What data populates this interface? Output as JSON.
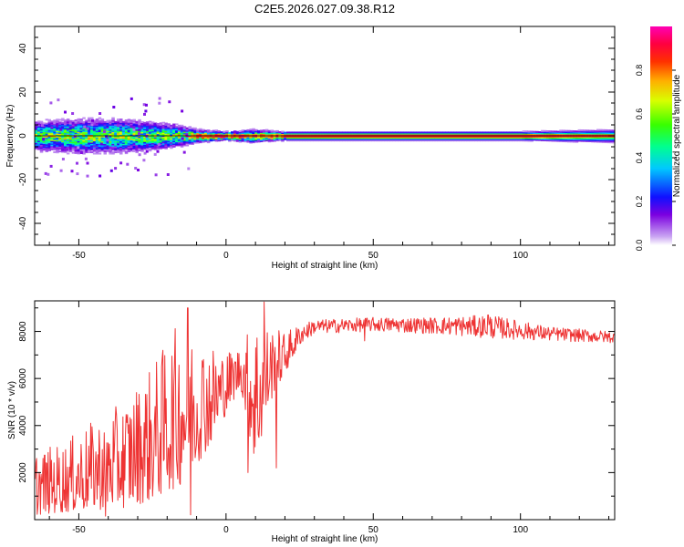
{
  "title": "C2E5.2026.027.09.38.R12",
  "chart_data": [
    {
      "type": "heatmap",
      "xlabel": "Height of straight line (km)",
      "ylabel": "Frequency (Hz)",
      "xlim": [
        -65,
        132
      ],
      "ylim": [
        -50,
        50
      ],
      "xticks": [
        -50,
        0,
        50,
        100
      ],
      "xtick_labels": [
        "-50",
        "0",
        "50",
        "100"
      ],
      "yticks": [
        -40,
        -20,
        0,
        20,
        40
      ],
      "ytick_labels": [
        "-40",
        "-20",
        "0",
        "20",
        "40"
      ],
      "colormap": "rainbow (0 = white/purple, 1 = magenta/red)",
      "description_band": "energy concentrated near 0 Hz; broad noisy band (about +/-8 Hz) from -65 to -10 km, narrow stable band near 0 Hz from 25 to 132 km",
      "ridge_profile": [
        {
          "x": -65,
          "halfwidth": 7,
          "peak": 0.55
        },
        {
          "x": -50,
          "halfwidth": 8,
          "peak": 0.6
        },
        {
          "x": -35,
          "halfwidth": 8,
          "peak": 0.55
        },
        {
          "x": -20,
          "halfwidth": 6,
          "peak": 0.55
        },
        {
          "x": -10,
          "halfwidth": 3,
          "peak": 0.8
        },
        {
          "x": 0,
          "halfwidth": 2,
          "peak": 0.85
        },
        {
          "x": 8,
          "halfwidth": 3,
          "peak": 0.75
        },
        {
          "x": 20,
          "halfwidth": 2,
          "peak": 0.85
        },
        {
          "x": 50,
          "halfwidth": 2,
          "peak": 0.9
        },
        {
          "x": 100,
          "halfwidth": 2,
          "peak": 0.9
        },
        {
          "x": 132,
          "halfwidth": 3,
          "peak": 0.6
        }
      ]
    },
    {
      "type": "colorbar",
      "label": "Normalized spectral amplitude",
      "range": [
        0,
        1
      ],
      "ticks": [
        0,
        0.2,
        0.4,
        0.6,
        0.8
      ],
      "tick_labels": [
        "0.0",
        "0.2",
        "0.4",
        "0.6",
        "0.8"
      ]
    },
    {
      "type": "line",
      "color": "#ee3333",
      "xlabel": "Height of straight line (km)",
      "ylabel": "SNR (10 * v/v)",
      "xlim": [
        -65,
        132
      ],
      "ylim": [
        0,
        9300
      ],
      "xticks": [
        -50,
        0,
        50,
        100
      ],
      "xtick_labels": [
        "-50",
        "0",
        "50",
        "100"
      ],
      "yticks": [
        2000,
        4000,
        6000,
        8000
      ],
      "ytick_labels": [
        "2000",
        "4000",
        "6000",
        "8000"
      ],
      "envelope": [
        {
          "x": -65,
          "low": 200,
          "high": 2900
        },
        {
          "x": -55,
          "low": 300,
          "high": 3300
        },
        {
          "x": -45,
          "low": 400,
          "high": 4200
        },
        {
          "x": -35,
          "low": 500,
          "high": 5000
        },
        {
          "x": -25,
          "low": 800,
          "high": 6600
        },
        {
          "x": -15,
          "low": 1500,
          "high": 8600
        },
        {
          "x": -5,
          "low": 3200,
          "high": 7500
        },
        {
          "x": 0,
          "low": 4500,
          "high": 7200
        },
        {
          "x": 5,
          "low": 5600,
          "high": 7400
        },
        {
          "x": 10,
          "low": 2200,
          "high": 8800
        },
        {
          "x": 15,
          "low": 5000,
          "high": 8200
        },
        {
          "x": 20,
          "low": 6200,
          "high": 8000
        },
        {
          "x": 25,
          "low": 7400,
          "high": 8300
        },
        {
          "x": 30,
          "low": 7900,
          "high": 8500
        },
        {
          "x": 50,
          "low": 8000,
          "high": 8600
        },
        {
          "x": 70,
          "low": 7900,
          "high": 8600
        },
        {
          "x": 90,
          "low": 7700,
          "high": 8700
        },
        {
          "x": 110,
          "low": 7600,
          "high": 8200
        },
        {
          "x": 132,
          "low": 7500,
          "high": 8000
        }
      ],
      "spikes": [
        {
          "x": -41,
          "y": 150
        },
        {
          "x": -13,
          "y": 9000
        },
        {
          "x": -12,
          "y": 200
        },
        {
          "x": 7.5,
          "y": 2000
        },
        {
          "x": 13,
          "y": 9250
        },
        {
          "x": 17,
          "y": 2200
        },
        {
          "x": 47,
          "y": 7600
        },
        {
          "x": 89,
          "y": 8700
        }
      ]
    }
  ]
}
